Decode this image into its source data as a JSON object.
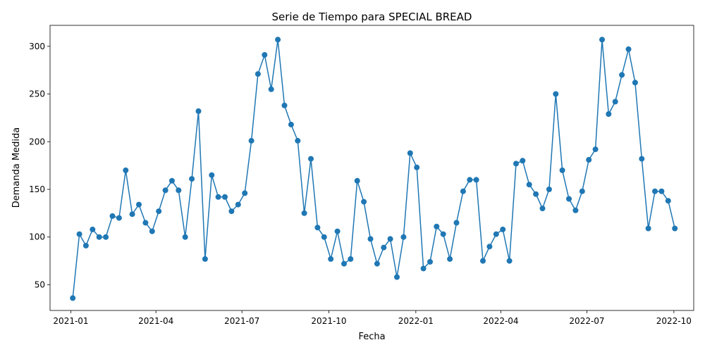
{
  "chart_data": {
    "type": "line",
    "title": "Serie de Tiempo para SPECIAL BREAD",
    "xlabel": "Fecha",
    "ylabel": "Demanda Medida",
    "x_ticks": [
      "2021-01",
      "2021-04",
      "2021-07",
      "2021-10",
      "2022-01",
      "2022-04",
      "2022-07",
      "2022-10"
    ],
    "y_ticks": [
      50,
      100,
      150,
      200,
      250,
      300
    ],
    "xlim": [
      "2020-12-10",
      "2022-10-22"
    ],
    "ylim": [
      23,
      322
    ],
    "grid": false,
    "marker": "circle",
    "color": "#1f77b4",
    "series": [
      {
        "x": [
          "2021-01-03",
          "2021-01-10",
          "2021-01-17",
          "2021-01-24",
          "2021-01-31",
          "2021-02-07",
          "2021-02-14",
          "2021-02-21",
          "2021-02-28",
          "2021-03-07",
          "2021-03-14",
          "2021-03-21",
          "2021-03-28",
          "2021-04-04",
          "2021-04-11",
          "2021-04-18",
          "2021-04-25",
          "2021-05-02",
          "2021-05-09",
          "2021-05-16",
          "2021-05-23",
          "2021-05-30",
          "2021-06-06",
          "2021-06-13",
          "2021-06-20",
          "2021-06-27",
          "2021-07-04",
          "2021-07-11",
          "2021-07-18",
          "2021-07-25",
          "2021-08-01",
          "2021-08-08",
          "2021-08-15",
          "2021-08-22",
          "2021-08-29",
          "2021-09-05",
          "2021-09-12",
          "2021-09-19",
          "2021-09-26",
          "2021-10-03",
          "2021-10-10",
          "2021-10-17",
          "2021-10-24",
          "2021-10-31",
          "2021-11-07",
          "2021-11-14",
          "2021-11-21",
          "2021-11-28",
          "2021-12-05",
          "2021-12-12",
          "2021-12-19",
          "2021-12-26",
          "2022-01-02",
          "2022-01-09",
          "2022-01-16",
          "2022-01-23",
          "2022-01-30",
          "2022-02-06",
          "2022-02-13",
          "2022-02-20",
          "2022-02-27",
          "2022-03-06",
          "2022-03-13",
          "2022-03-20",
          "2022-03-27",
          "2022-04-03",
          "2022-04-10",
          "2022-04-17",
          "2022-04-24",
          "2022-05-01",
          "2022-05-08",
          "2022-05-15",
          "2022-05-22",
          "2022-05-29",
          "2022-06-05",
          "2022-06-12",
          "2022-06-19",
          "2022-06-26",
          "2022-07-03",
          "2022-07-10",
          "2022-07-17",
          "2022-07-24",
          "2022-07-31",
          "2022-08-07",
          "2022-08-14",
          "2022-08-21",
          "2022-08-28",
          "2022-09-04",
          "2022-09-11",
          "2022-09-18",
          "2022-09-25",
          "2022-10-02"
        ],
        "y": [
          36,
          103,
          91,
          108,
          100,
          100,
          122,
          120,
          170,
          124,
          134,
          115,
          106,
          127,
          149,
          159,
          149,
          100,
          161,
          232,
          77,
          165,
          142,
          142,
          127,
          134,
          146,
          201,
          271,
          291,
          255,
          307,
          238,
          218,
          201,
          125,
          182,
          110,
          100,
          77,
          106,
          72,
          77,
          159,
          137,
          98,
          72,
          89,
          98,
          58,
          100,
          188,
          173,
          67,
          74,
          111,
          103,
          77,
          115,
          148,
          160,
          160,
          75,
          90,
          103,
          108,
          75,
          177,
          180,
          155,
          145,
          130,
          150,
          250,
          170,
          140,
          128,
          148,
          181,
          192,
          307,
          229,
          242,
          270,
          297,
          262,
          182,
          109,
          148,
          148,
          138,
          109
        ]
      }
    ]
  }
}
